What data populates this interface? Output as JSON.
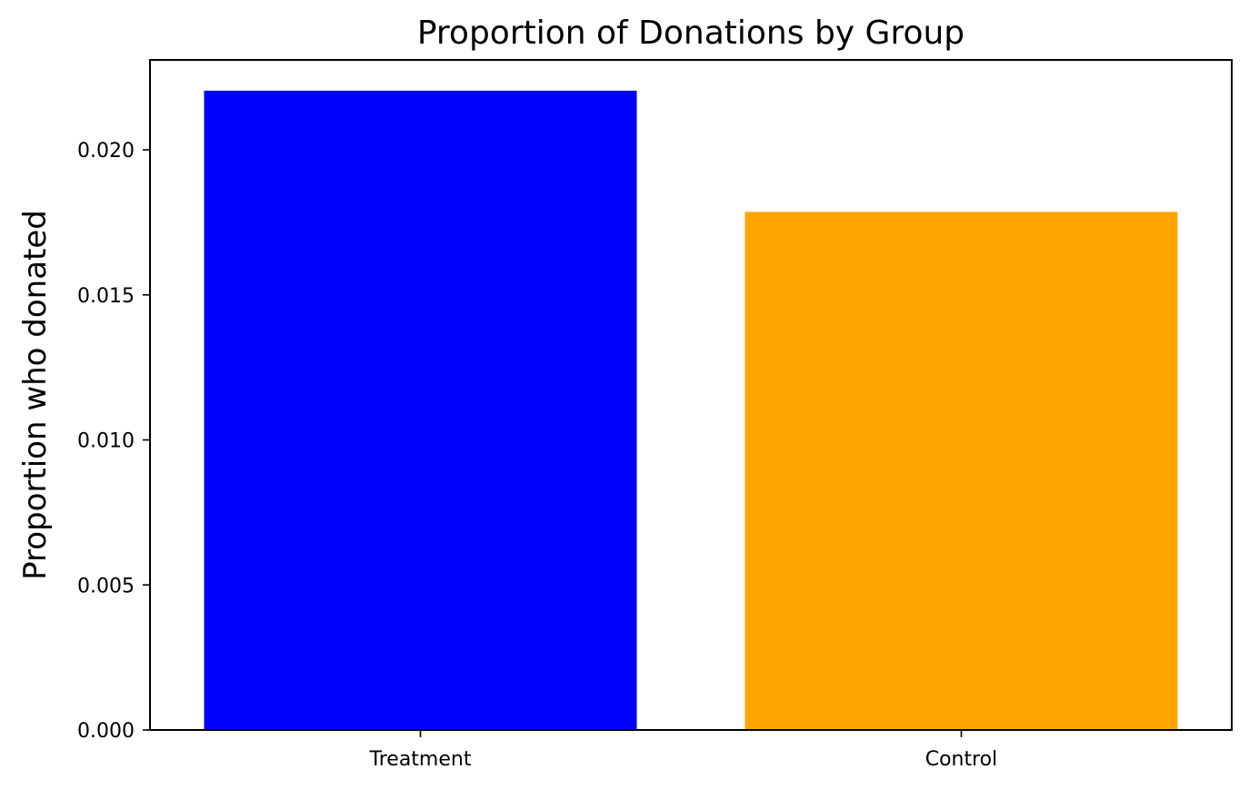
{
  "chart_data": {
    "type": "bar",
    "title": "Proportion of Donations by Group",
    "xlabel": "",
    "ylabel": "Proportion who donated",
    "categories": [
      "Treatment",
      "Control"
    ],
    "values": [
      0.02204,
      0.01786
    ],
    "colors": [
      "#0000ff",
      "#ffa500"
    ],
    "ylim": [
      0,
      0.0231
    ],
    "yticks": [
      0.0,
      0.005,
      0.01,
      0.015,
      0.02
    ],
    "ytick_labels": [
      "0.000",
      "0.005",
      "0.010",
      "0.015",
      "0.020"
    ],
    "grid": false,
    "legend": "none"
  }
}
